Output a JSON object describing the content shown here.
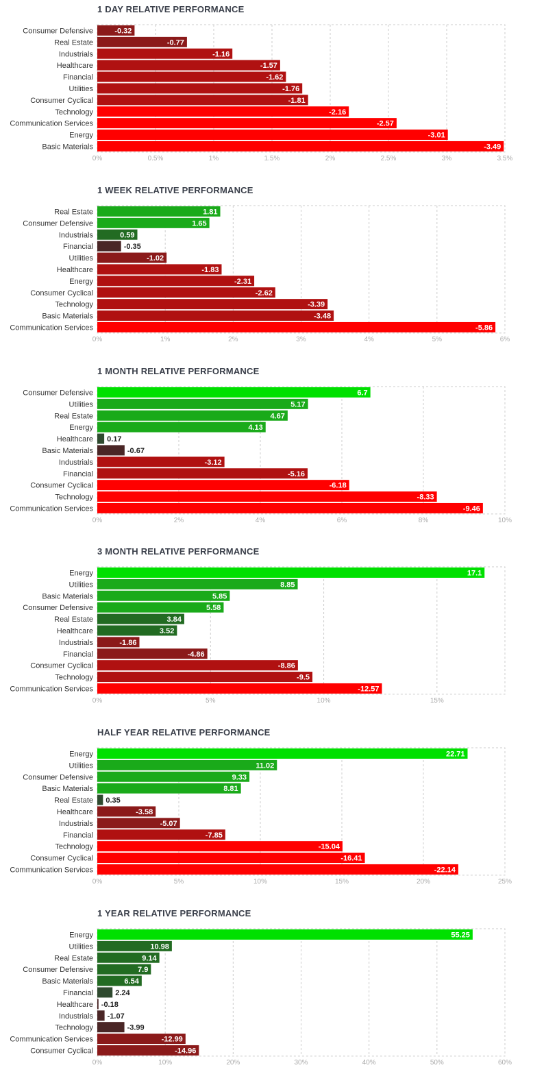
{
  "colors": {
    "neg_strong": "#ff0000",
    "neg_mid": "#b01111",
    "neg_weak": "#8b1a1a",
    "neg_faint": "#4a2626",
    "pos_strong": "#00e000",
    "pos_mid": "#1aaa1a",
    "pos_weak": "#226b22",
    "pos_faint": "#2f4a2f",
    "grid": "#cccccc",
    "title": "#3a3f4a"
  },
  "chart_data": [
    {
      "type": "bar",
      "orientation": "horizontal",
      "title": "1 DAY RELATIVE PERFORMANCE",
      "categories": [
        "Consumer Defensive",
        "Real Estate",
        "Industrials",
        "Healthcare",
        "Financial",
        "Utilities",
        "Consumer Cyclical",
        "Technology",
        "Communication Services",
        "Energy",
        "Basic Materials"
      ],
      "values": [
        -0.32,
        -0.77,
        -1.16,
        -1.57,
        -1.62,
        -1.76,
        -1.81,
        -2.16,
        -2.57,
        -3.01,
        -3.49
      ],
      "value_labels": [
        "-0.32",
        "-0.77",
        "-1.16",
        "-1.57",
        "-1.62",
        "-1.76",
        "-1.81",
        "-2.16",
        "-2.57",
        "-3.01",
        "-3.49"
      ],
      "xlim": [
        0,
        3.5
      ],
      "ticks": [
        "0%",
        "0.5%",
        "1%",
        "1.5%",
        "2%",
        "2.5%",
        "3%",
        "3.5%"
      ],
      "plot_magnitude": "absolute",
      "grid": true
    },
    {
      "type": "bar",
      "orientation": "horizontal",
      "title": "1 WEEK RELATIVE PERFORMANCE",
      "categories": [
        "Real Estate",
        "Consumer Defensive",
        "Industrials",
        "Financial",
        "Utilities",
        "Healthcare",
        "Energy",
        "Consumer Cyclical",
        "Technology",
        "Basic Materials",
        "Communication Services"
      ],
      "values": [
        1.81,
        1.65,
        0.59,
        -0.35,
        -1.02,
        -1.83,
        -2.31,
        -2.62,
        -3.39,
        -3.48,
        -5.86
      ],
      "value_labels": [
        "1.81",
        "1.65",
        "0.59",
        "-0.35",
        "-1.02",
        "-1.83",
        "-2.31",
        "-2.62",
        "-3.39",
        "-3.48",
        "-5.86"
      ],
      "xlim": [
        0,
        6
      ],
      "ticks": [
        "0%",
        "1%",
        "2%",
        "3%",
        "4%",
        "5%",
        "6%"
      ],
      "plot_magnitude": "absolute",
      "grid": true
    },
    {
      "type": "bar",
      "orientation": "horizontal",
      "title": "1 MONTH RELATIVE PERFORMANCE",
      "categories": [
        "Consumer Defensive",
        "Utilities",
        "Real Estate",
        "Energy",
        "Healthcare",
        "Basic Materials",
        "Industrials",
        "Financial",
        "Consumer Cyclical",
        "Technology",
        "Communication Services"
      ],
      "values": [
        6.7,
        5.17,
        4.67,
        4.13,
        0.17,
        -0.67,
        -3.12,
        -5.16,
        -6.18,
        -8.33,
        -9.46
      ],
      "value_labels": [
        "6.7",
        "5.17",
        "4.67",
        "4.13",
        "0.17",
        "-0.67",
        "-3.12",
        "-5.16",
        "-6.18",
        "-8.33",
        "-9.46"
      ],
      "xlim": [
        0,
        10
      ],
      "ticks": [
        "0%",
        "2%",
        "4%",
        "6%",
        "8%",
        "10%"
      ],
      "plot_magnitude": "absolute",
      "grid": true
    },
    {
      "type": "bar",
      "orientation": "horizontal",
      "title": "3 MONTH RELATIVE PERFORMANCE",
      "categories": [
        "Energy",
        "Utilities",
        "Basic Materials",
        "Consumer Defensive",
        "Real Estate",
        "Healthcare",
        "Industrials",
        "Financial",
        "Consumer Cyclical",
        "Technology",
        "Communication Services"
      ],
      "values": [
        17.1,
        8.85,
        5.85,
        5.58,
        3.84,
        3.52,
        -1.86,
        -4.86,
        -8.86,
        -9.5,
        -12.57
      ],
      "value_labels": [
        "17.1",
        "8.85",
        "5.85",
        "5.58",
        "3.84",
        "3.52",
        "-1.86",
        "-4.86",
        "-8.86",
        "-9.5",
        "-12.57"
      ],
      "xlim": [
        0,
        18
      ],
      "ticks": [
        "0%",
        "5%",
        "10%",
        "15%"
      ],
      "tick_values": [
        0,
        5,
        10,
        15
      ],
      "plot_magnitude": "absolute",
      "grid": true
    },
    {
      "type": "bar",
      "orientation": "horizontal",
      "title": "HALF YEAR RELATIVE PERFORMANCE",
      "categories": [
        "Energy",
        "Utilities",
        "Consumer Defensive",
        "Basic Materials",
        "Real Estate",
        "Healthcare",
        "Industrials",
        "Financial",
        "Technology",
        "Consumer Cyclical",
        "Communication Services"
      ],
      "values": [
        22.71,
        11.02,
        9.33,
        8.81,
        0.35,
        -3.58,
        -5.07,
        -7.85,
        -15.04,
        -16.41,
        -22.14
      ],
      "value_labels": [
        "22.71",
        "11.02",
        "9.33",
        "8.81",
        "0.35",
        "-3.58",
        "-5.07",
        "-7.85",
        "-15.04",
        "-16.41",
        "-22.14"
      ],
      "xlim": [
        0,
        25
      ],
      "ticks": [
        "0%",
        "5%",
        "10%",
        "15%",
        "20%",
        "25%"
      ],
      "plot_magnitude": "absolute",
      "grid": true
    },
    {
      "type": "bar",
      "orientation": "horizontal",
      "title": "1 YEAR RELATIVE PERFORMANCE",
      "categories": [
        "Energy",
        "Utilities",
        "Real Estate",
        "Consumer Defensive",
        "Basic Materials",
        "Financial",
        "Healthcare",
        "Industrials",
        "Technology",
        "Communication Services",
        "Consumer Cyclical"
      ],
      "values": [
        55.25,
        10.98,
        9.14,
        7.9,
        6.54,
        2.24,
        -0.18,
        -1.07,
        -3.99,
        -12.99,
        -14.96
      ],
      "value_labels": [
        "55.25",
        "10.98",
        "9.14",
        "7.9",
        "6.54",
        "2.24",
        "-0.18",
        "-1.07",
        "-3.99",
        "-12.99",
        "-14.96"
      ],
      "xlim": [
        0,
        60
      ],
      "ticks": [
        "0%",
        "10%",
        "20%",
        "30%",
        "40%",
        "50%",
        "60%"
      ],
      "plot_magnitude": "absolute",
      "grid": true
    }
  ]
}
